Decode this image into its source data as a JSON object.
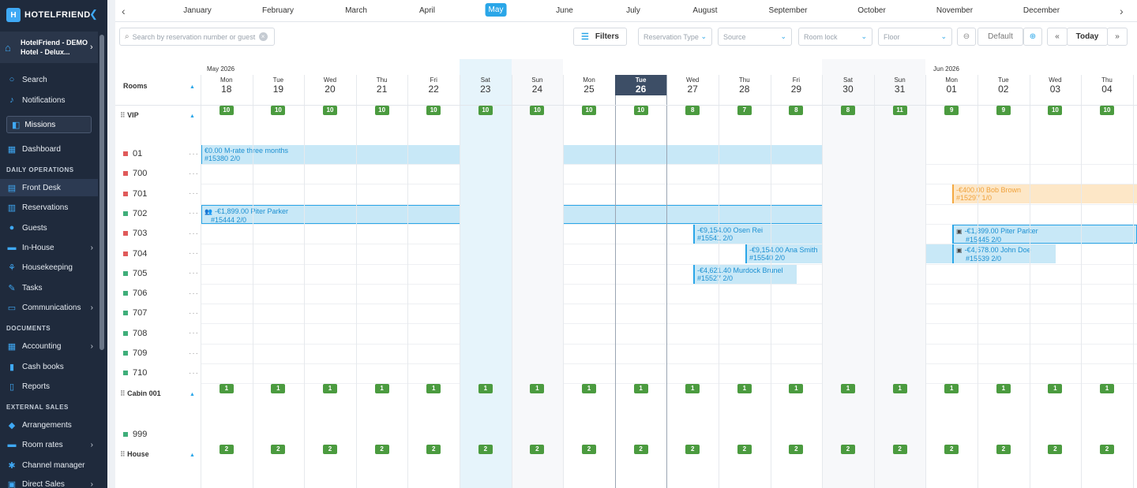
{
  "sidebar": {
    "logo": "HOTELFRIEND",
    "logo_mark": "H",
    "hotel_name": "HotelFriend - DEMO Hotel - Delux...",
    "search": "Search",
    "notifications": "Notifications",
    "missions": "Missions",
    "dashboard": "Dashboard",
    "section_daily": "DAILY OPERATIONS",
    "front_desk": "Front Desk",
    "reservations": "Reservations",
    "guests": "Guests",
    "in_house": "In-House",
    "housekeeping": "Housekeeping",
    "tasks": "Tasks",
    "communications": "Communications",
    "section_documents": "DOCUMENTS",
    "accounting": "Accounting",
    "cash_books": "Cash books",
    "reports": "Reports",
    "section_external": "EXTERNAL SALES",
    "arrangements": "Arrangements",
    "room_rates": "Room rates",
    "channel_manager": "Channel manager",
    "direct_sales": "Direct Sales"
  },
  "months": [
    "January",
    "February",
    "March",
    "April",
    "May",
    "June",
    "July",
    "August",
    "September",
    "October",
    "November",
    "December"
  ],
  "active_month": "May",
  "toolbar": {
    "search_placeholder": "Search by reservation number or guest",
    "filters": "Filters",
    "reservation_type": "Reservation Type",
    "source": "Source",
    "room_lock": "Room lock",
    "floor": "Floor",
    "zoom": "Default",
    "today": "Today"
  },
  "calendar": {
    "rooms_header": "Rooms",
    "month_label_1": "May 2026",
    "month_label_2": "Jun 2026",
    "days": [
      {
        "n": "Mon",
        "d": "18"
      },
      {
        "n": "Tue",
        "d": "19"
      },
      {
        "n": "Wed",
        "d": "20"
      },
      {
        "n": "Thu",
        "d": "21"
      },
      {
        "n": "Fri",
        "d": "22"
      },
      {
        "n": "Sat",
        "d": "23"
      },
      {
        "n": "Sun",
        "d": "24"
      },
      {
        "n": "Mon",
        "d": "25"
      },
      {
        "n": "Tue",
        "d": "26"
      },
      {
        "n": "Wed",
        "d": "27"
      },
      {
        "n": "Thu",
        "d": "28"
      },
      {
        "n": "Fri",
        "d": "29"
      },
      {
        "n": "Sat",
        "d": "30"
      },
      {
        "n": "Sun",
        "d": "31"
      },
      {
        "n": "Mon",
        "d": "01"
      },
      {
        "n": "Tue",
        "d": "02"
      },
      {
        "n": "Wed",
        "d": "03"
      },
      {
        "n": "Thu",
        "d": "04"
      }
    ],
    "today_index": 8,
    "groups": [
      {
        "name": "VIP",
        "avail": [
          "10",
          "10",
          "10",
          "10",
          "10",
          "10",
          "10",
          "10",
          "10",
          "8",
          "7",
          "8",
          "8",
          "11",
          "9",
          "9",
          "10",
          "10"
        ]
      },
      {
        "name": "Cabin 001",
        "avail": [
          "1",
          "1",
          "1",
          "1",
          "1",
          "1",
          "1",
          "1",
          "1",
          "1",
          "1",
          "1",
          "1",
          "1",
          "1",
          "1",
          "1",
          "1"
        ]
      },
      {
        "name": "House",
        "avail": [
          "2",
          "2",
          "2",
          "2",
          "2",
          "2",
          "2",
          "2",
          "2",
          "2",
          "2",
          "2",
          "2",
          "2",
          "2",
          "2",
          "2",
          "2"
        ]
      }
    ],
    "rooms": [
      {
        "no": "01",
        "status": "#e05a5a"
      },
      {
        "no": "700",
        "status": "#e05a5a"
      },
      {
        "no": "701",
        "status": "#e05a5a"
      },
      {
        "no": "702",
        "status": "#3fae7a"
      },
      {
        "no": "703",
        "status": "#e05a5a"
      },
      {
        "no": "704",
        "status": "#e05a5a"
      },
      {
        "no": "705",
        "status": "#3fae7a"
      },
      {
        "no": "706",
        "status": "#3fae7a"
      },
      {
        "no": "707",
        "status": "#3fae7a"
      },
      {
        "no": "708",
        "status": "#3fae7a"
      },
      {
        "no": "709",
        "status": "#3fae7a"
      },
      {
        "no": "710",
        "status": "#3fae7a"
      }
    ],
    "room_999": "999",
    "reservations": [
      {
        "line1": "€0.00 M-rate three months",
        "line2": "#15380 2/0"
      },
      {
        "line1": "-€1,899.00 Piter Parker",
        "line2": "#15444 2/0"
      },
      {
        "line1": "-€400.00 Bob Brown",
        "line2": "#15297 1/0"
      },
      {
        "line1": "-€9,154.00 Osen Rei",
        "line2": "#15541 2/0"
      },
      {
        "line1": "-€1,899.00 Piter Parker",
        "line2": "#15445 2/0"
      },
      {
        "line1": "-€9,154.00 Ana Smith",
        "line2": "#15540 2/0"
      },
      {
        "line1": "-€4,578.00 John Doe",
        "line2": "#15539 2/0"
      },
      {
        "line1": "-€4,621.40 Murdock Brunel",
        "line2": "#15527 2/0"
      }
    ]
  },
  "colors": {
    "accent": "#2aa6e8",
    "available": "#4b9b3f",
    "today": "#3d4e66",
    "sidebar": "#1f2a3c"
  }
}
